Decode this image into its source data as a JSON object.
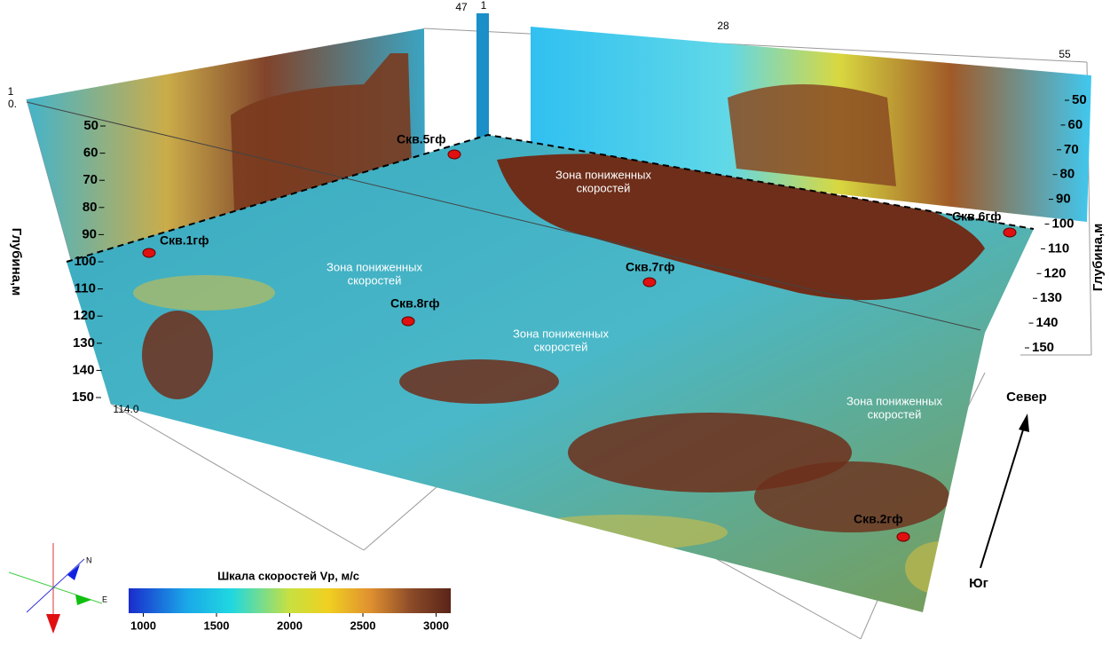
{
  "scene": {
    "top_labels": [
      "47",
      "1",
      "28",
      "55"
    ],
    "corner_labels": [
      "1",
      "0.",
      "114.0"
    ],
    "left_axis": {
      "title": "Глубина,м",
      "ticks": [
        50,
        60,
        70,
        80,
        90,
        100,
        110,
        120,
        130,
        140,
        150
      ]
    },
    "right_axis": {
      "title": "Глубина,м",
      "ticks": [
        50,
        60,
        70,
        80,
        90,
        100,
        110,
        120,
        130,
        140,
        150
      ]
    },
    "wells": [
      "Скв.1гф",
      "Скв.5гф",
      "Скв.6гф",
      "Скв.7гф",
      "Скв.8гф",
      "Скв.2гф"
    ],
    "zones": [
      [
        "Зона пониженных",
        "скоростей"
      ],
      [
        "Зона пониженных",
        "скоростей"
      ],
      [
        "Зона пониженных",
        "скоростей"
      ],
      [
        "Зона пониженных",
        "скоростей"
      ]
    ],
    "directions": {
      "north": "Север",
      "south": "Юг"
    },
    "compass": {
      "n": "N",
      "e": "E"
    },
    "colorbar": {
      "title": "Шкала скоростей Vp, м/с",
      "lim": [
        900,
        3100
      ],
      "ticks": [
        1000,
        1500,
        2000,
        2500,
        3000
      ]
    }
  }
}
